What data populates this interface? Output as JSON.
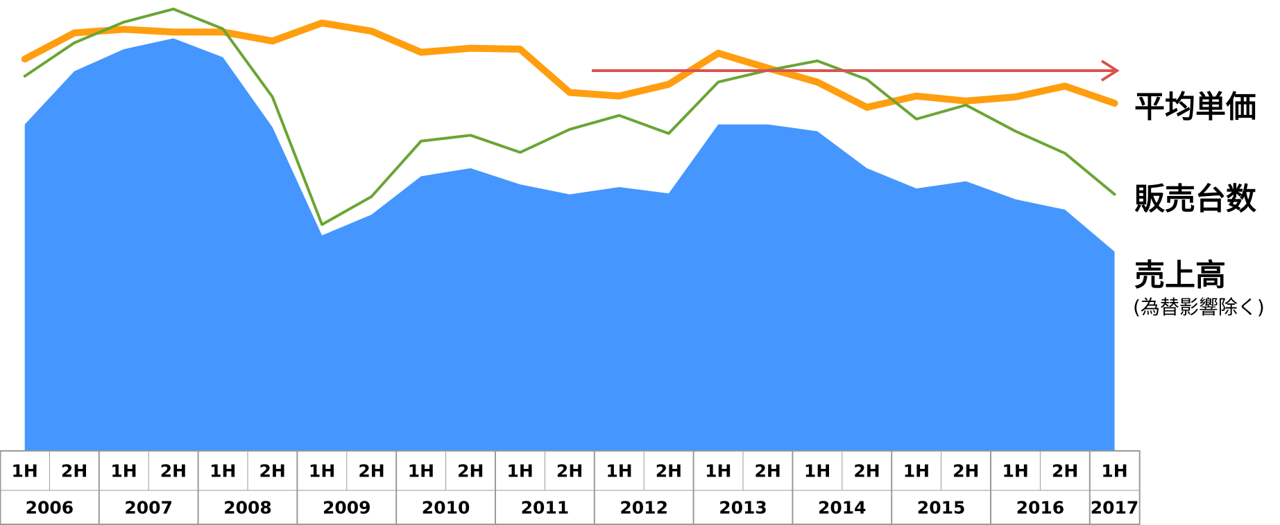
{
  "chart_data": {
    "type": "line",
    "categories": [
      "1H",
      "2H",
      "1H",
      "2H",
      "1H",
      "2H",
      "1H",
      "2H",
      "1H",
      "2H",
      "1H",
      "2H",
      "1H",
      "2H",
      "1H",
      "2H",
      "1H",
      "2H",
      "1H",
      "2H",
      "1H",
      "2H",
      "1H"
    ],
    "years": [
      "2006",
      "2007",
      "2008",
      "2009",
      "2010",
      "2011",
      "2012",
      "2013",
      "2014",
      "2015",
      "2016",
      "2017"
    ],
    "ylim": [
      0,
      100
    ],
    "series": [
      {
        "name": "平均単価",
        "color": "#ff9e0f",
        "kind": "line",
        "width": 10,
        "values": [
          86.9,
          92.7,
          93.5,
          92.9,
          92.9,
          90.9,
          94.9,
          93.1,
          88.4,
          89.3,
          89.1,
          79.5,
          78.7,
          81.3,
          88.2,
          84.9,
          81.8,
          76.2,
          78.7,
          77.6,
          78.5,
          80.9,
          77.1
        ]
      },
      {
        "name": "販売台数",
        "color": "#6aa534",
        "kind": "line",
        "width": 4,
        "values": [
          83.1,
          90.5,
          95.1,
          98,
          93.6,
          78.5,
          50.2,
          56.4,
          68.7,
          70,
          66.2,
          71.3,
          74.4,
          70.4,
          81.8,
          84.4,
          86.5,
          82.4,
          73.6,
          76.7,
          70.9,
          66,
          56.9
        ]
      },
      {
        "name": "売上高",
        "note": "(為替影響除く)",
        "color": "#4596fe",
        "kind": "area",
        "values": [
          72.4,
          84.2,
          89.1,
          91.5,
          87.3,
          71.8,
          47.8,
          52.4,
          60.9,
          62.7,
          59.1,
          56.9,
          58.5,
          57.1,
          72.4,
          72.4,
          70.9,
          62.7,
          58.2,
          59.8,
          55.8,
          53.5,
          44.2
        ]
      }
    ]
  }
}
